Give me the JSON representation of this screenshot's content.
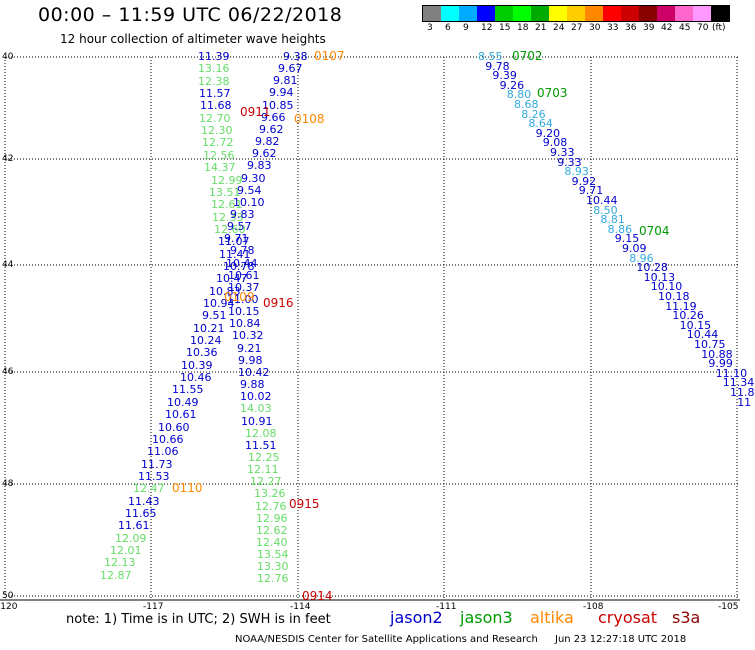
{
  "header": {
    "title": "00:00 – 11:59 UTC 06/22/2018",
    "subtitle": "12 hour collection of altimeter wave heights"
  },
  "colorbar": {
    "colors": [
      "#808080",
      "#00ffff",
      "#00aaff",
      "#0000ff",
      "#00cc00",
      "#00ff00",
      "#00aa00",
      "#ffff00",
      "#ffcc00",
      "#ff8800",
      "#ff0000",
      "#cc0000",
      "#880000",
      "#cc0066",
      "#ff66cc",
      "#ff99ff",
      "#000000"
    ],
    "labels": [
      "3",
      "6",
      "9",
      "12",
      "15",
      "18",
      "21",
      "24",
      "27",
      "30",
      "33",
      "36",
      "39",
      "42",
      "45",
      "70",
      "(ft)"
    ]
  },
  "map": {
    "lat_ticks": [
      "40",
      "42",
      "44",
      "46",
      "48",
      "50"
    ],
    "lon_ticks": [
      "-120",
      "-117",
      "-114",
      "-111",
      "-108",
      "-105"
    ]
  },
  "note": "note:  1) Time is in UTC;  2) SWH is in feet",
  "satellites": [
    {
      "name": "jason2",
      "color": "#0000cc"
    },
    {
      "name": "jason3",
      "color": "#009900"
    },
    {
      "name": "altika",
      "color": "#ff8800"
    },
    {
      "name": "cryosat",
      "color": "#cc0000"
    },
    {
      "name": "s3a",
      "color": "#8b0000"
    }
  ],
  "credit": "NOAA/NESDIS Center for Satellite Applications and Research",
  "timestamp": "Jun 23 12:27:18 UTC 2018",
  "tracks": {
    "left_a": [
      [
        "11.39",
        "#0000cc"
      ],
      [
        "13.16",
        "#66dd66"
      ],
      [
        "12.38",
        "#66dd66"
      ],
      [
        "11.57",
        "#0000cc"
      ],
      [
        "11.68",
        "#0000cc"
      ],
      [
        "12.70",
        "#66dd66"
      ],
      [
        "12.30",
        "#66dd66"
      ],
      [
        "12.72",
        "#66dd66"
      ],
      [
        "12.56",
        "#66dd66"
      ],
      [
        "14.37",
        "#66dd66"
      ],
      [
        "12.99",
        "#66dd66"
      ],
      [
        "13.51",
        "#66dd66"
      ],
      [
        "12.61",
        "#66dd66"
      ],
      [
        "12.33",
        "#66dd66"
      ],
      [
        "12.60",
        "#66dd66"
      ],
      [
        "11.07",
        "#0000cc"
      ],
      [
        "11.41",
        "#0000cc"
      ],
      [
        "10.78",
        "#0000cc"
      ],
      [
        "10.47",
        "#0000cc"
      ],
      [
        "10.83",
        "#0000cc"
      ],
      [
        "10.94",
        "#0000cc"
      ],
      [
        "9.51",
        "#0000cc"
      ],
      [
        "10.21",
        "#0000cc"
      ],
      [
        "10.24",
        "#0000cc"
      ],
      [
        "10.36",
        "#0000cc"
      ],
      [
        "10.39",
        "#0000cc"
      ],
      [
        "10.46",
        "#0000cc"
      ],
      [
        "11.55",
        "#0000cc"
      ],
      [
        "10.49",
        "#0000cc"
      ],
      [
        "10.61",
        "#0000cc"
      ],
      [
        "10.60",
        "#0000cc"
      ],
      [
        "10.66",
        "#0000cc"
      ],
      [
        "11.06",
        "#0000cc"
      ],
      [
        "11.73",
        "#0000cc"
      ],
      [
        "11.53",
        "#0000cc"
      ],
      [
        "12.47",
        "#66dd66"
      ],
      [
        "11.43",
        "#0000cc"
      ],
      [
        "11.65",
        "#0000cc"
      ],
      [
        "11.61",
        "#0000cc"
      ],
      [
        "12.09",
        "#66dd66"
      ],
      [
        "12.01",
        "#66dd66"
      ],
      [
        "12.13",
        "#66dd66"
      ],
      [
        "12.87",
        "#66dd66"
      ]
    ],
    "left_b": [
      [
        "9.38",
        "#0000cc"
      ],
      [
        "9.67",
        "#0000cc"
      ],
      [
        "9.81",
        "#0000cc"
      ],
      [
        "9.94",
        "#0000cc"
      ],
      [
        "10.85",
        "#0000cc"
      ],
      [
        "9.66",
        "#0000cc"
      ],
      [
        "9.62",
        "#0000cc"
      ],
      [
        "9.82",
        "#0000cc"
      ],
      [
        "9.62",
        "#0000cc"
      ],
      [
        "9.83",
        "#0000cc"
      ],
      [
        "9.30",
        "#0000cc"
      ],
      [
        "9.54",
        "#0000cc"
      ],
      [
        "10.10",
        "#0000cc"
      ],
      [
        "9.83",
        "#0000cc"
      ],
      [
        "9.57",
        "#0000cc"
      ],
      [
        "9.71",
        "#0000cc"
      ],
      [
        "9.78",
        "#0000cc"
      ],
      [
        "10.44",
        "#0000cc"
      ],
      [
        "10.61",
        "#0000cc"
      ],
      [
        "10.37",
        "#0000cc"
      ],
      [
        "11.00",
        "#0000cc"
      ],
      [
        "10.15",
        "#0000cc"
      ],
      [
        "10.84",
        "#0000cc"
      ],
      [
        "10.32",
        "#0000cc"
      ],
      [
        "9.21",
        "#0000cc"
      ],
      [
        "9.98",
        "#0000cc"
      ],
      [
        "10.42",
        "#0000cc"
      ],
      [
        "9.88",
        "#0000cc"
      ],
      [
        "10.02",
        "#0000cc"
      ],
      [
        "14.03",
        "#66dd66"
      ],
      [
        "10.91",
        "#0000cc"
      ],
      [
        "12.08",
        "#66dd66"
      ],
      [
        "11.51",
        "#0000cc"
      ],
      [
        "12.25",
        "#66dd66"
      ],
      [
        "12.11",
        "#66dd66"
      ],
      [
        "12.27",
        "#66dd66"
      ],
      [
        "13.26",
        "#66dd66"
      ],
      [
        "12.76",
        "#66dd66"
      ],
      [
        "12.96",
        "#66dd66"
      ],
      [
        "12.62",
        "#66dd66"
      ],
      [
        "12.40",
        "#66dd66"
      ],
      [
        "13.54",
        "#66dd66"
      ],
      [
        "13.30",
        "#66dd66"
      ],
      [
        "12.76",
        "#66dd66"
      ]
    ],
    "right": [
      [
        "8.55",
        "#33aadd"
      ],
      [
        "9.78",
        "#0000cc"
      ],
      [
        "9.39",
        "#0000cc"
      ],
      [
        "9.26",
        "#0000cc"
      ],
      [
        "8.80",
        "#33aadd"
      ],
      [
        "8.68",
        "#33aadd"
      ],
      [
        "8.26",
        "#33aadd"
      ],
      [
        "8.64",
        "#33aadd"
      ],
      [
        "9.20",
        "#0000cc"
      ],
      [
        "9.08",
        "#0000cc"
      ],
      [
        "9.33",
        "#0000cc"
      ],
      [
        "9.33",
        "#0000cc"
      ],
      [
        "8.93",
        "#33aadd"
      ],
      [
        "9.92",
        "#0000cc"
      ],
      [
        "9.71",
        "#0000cc"
      ],
      [
        "10.44",
        "#0000cc"
      ],
      [
        "8.50",
        "#33aadd"
      ],
      [
        "8.81",
        "#33aadd"
      ],
      [
        "8.86",
        "#33aadd"
      ],
      [
        "9.15",
        "#0000cc"
      ],
      [
        "9.09",
        "#0000cc"
      ],
      [
        "8.96",
        "#33aadd"
      ],
      [
        "10.28",
        "#0000cc"
      ],
      [
        "10.13",
        "#0000cc"
      ],
      [
        "10.10",
        "#0000cc"
      ],
      [
        "10.18",
        "#0000cc"
      ],
      [
        "11.19",
        "#0000cc"
      ],
      [
        "10.26",
        "#0000cc"
      ],
      [
        "10.15",
        "#0000cc"
      ],
      [
        "10.44",
        "#0000cc"
      ],
      [
        "10.75",
        "#0000cc"
      ],
      [
        "10.88",
        "#0000cc"
      ],
      [
        "9.99",
        "#0000cc"
      ],
      [
        "11.10",
        "#0000cc"
      ],
      [
        "11.34",
        "#0000cc"
      ],
      [
        "11.8",
        "#0000cc"
      ],
      [
        "11",
        "#0000cc"
      ]
    ],
    "pass_labels": [
      [
        "0107",
        "#ff8800"
      ],
      [
        "0911",
        "#cc0000"
      ],
      [
        "0108",
        "#ff8800"
      ],
      [
        "0109",
        "#ff8800"
      ],
      [
        "0916",
        "#cc0000"
      ],
      [
        "0110",
        "#ff8800"
      ],
      [
        "0915",
        "#cc0000"
      ],
      [
        "0914",
        "#cc0000"
      ],
      [
        "0702",
        "#009900"
      ],
      [
        "0703",
        "#009900"
      ],
      [
        "0704",
        "#009900"
      ]
    ]
  }
}
